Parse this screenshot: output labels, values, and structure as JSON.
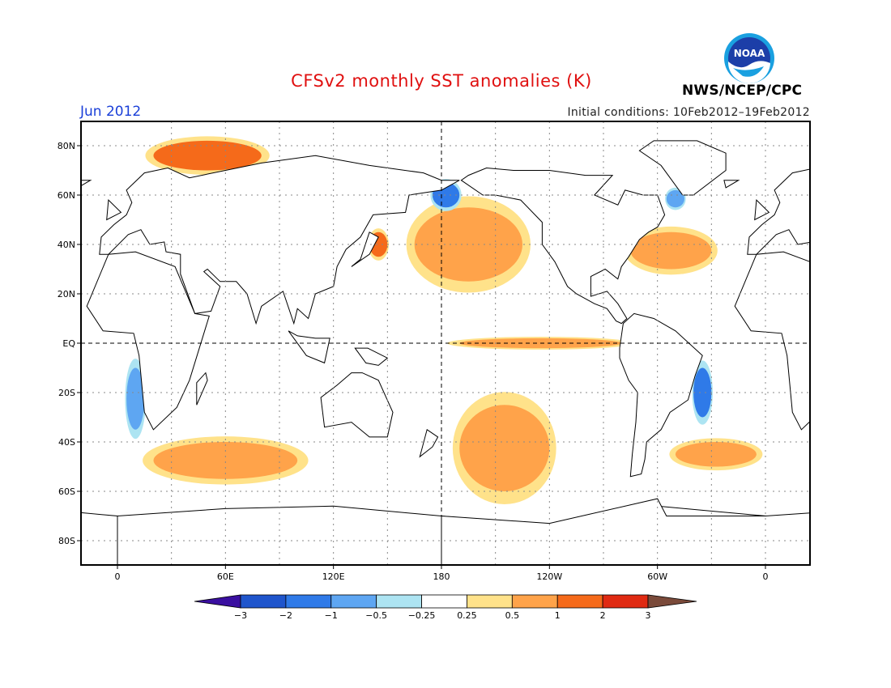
{
  "title": "CFSv2 monthly SST anomalies (K)",
  "month": "Jun 2012",
  "initial_conditions": "Initial conditions: 10Feb2012–19Feb2012",
  "agency": "NWS/NCEP/CPC",
  "logo_text": "NOAA",
  "colors": {
    "title": "#e01010",
    "month": "#1a3fd8"
  },
  "lat_labels": [
    "80N",
    "60N",
    "40N",
    "20N",
    "EQ",
    "20S",
    "40S",
    "60S",
    "80S"
  ],
  "lon_labels": [
    "0",
    "60E",
    "120E",
    "180",
    "120W",
    "60W",
    "0"
  ],
  "colorbar": {
    "tick_labels": [
      "−3",
      "−2",
      "−1",
      "−0.5",
      "−0.25",
      "0.25",
      "0.5",
      "1",
      "2",
      "3"
    ],
    "colors": [
      "#3a0fa0",
      "#1f55cc",
      "#2f7ae8",
      "#5ea6f2",
      "#ade4f2",
      "#ffffff",
      "#ffe28a",
      "#ffa34a",
      "#f56a1a",
      "#e02a12",
      "#b51010",
      "#7a4a3a"
    ]
  },
  "chart_data": {
    "type": "heatmap",
    "variable": "SST anomaly",
    "units": "K",
    "levels": [
      -3,
      -2,
      -1,
      -0.5,
      -0.25,
      0.25,
      0.5,
      1,
      2,
      3
    ],
    "anomaly_regions": [
      {
        "name": "North Pacific",
        "lat": [
          25,
          55
        ],
        "lon": [
          165,
          -135
        ],
        "anomaly": 1.0
      },
      {
        "name": "Equatorial Pacific",
        "lat": [
          -2,
          2
        ],
        "lon": [
          -170,
          -80
        ],
        "anomaly": 1.0
      },
      {
        "name": "North Atlantic (Gulf Stream)",
        "lat": [
          30,
          45
        ],
        "lon": [
          -75,
          -30
        ],
        "anomaly": 1.0
      },
      {
        "name": "Arctic Ocean / Barents Sea",
        "lat": [
          70,
          82
        ],
        "lon": [
          20,
          80
        ],
        "anomaly": 2.0
      },
      {
        "name": "Kuroshio Extension",
        "lat": [
          35,
          45
        ],
        "lon": [
          140,
          150
        ],
        "anomaly": 2.0
      },
      {
        "name": "Southern Indian Ocean",
        "lat": [
          -55,
          -40
        ],
        "lon": [
          20,
          100
        ],
        "anomaly": 1.0
      },
      {
        "name": "South Pacific",
        "lat": [
          -60,
          -25
        ],
        "lon": [
          -170,
          -120
        ],
        "anomaly": 1.0
      },
      {
        "name": "South Atlantic",
        "lat": [
          -50,
          -40
        ],
        "lon": [
          -50,
          -5
        ],
        "anomaly": 1.0
      },
      {
        "name": "Benguela Current",
        "lat": [
          -35,
          -10
        ],
        "lon": [
          5,
          15
        ],
        "anomaly": -0.5
      },
      {
        "name": "Brazil coast",
        "lat": [
          -30,
          -10
        ],
        "lon": [
          -40,
          -30
        ],
        "anomaly": -1.0
      },
      {
        "name": "Labrador Sea",
        "lat": [
          55,
          62
        ],
        "lon": [
          -55,
          -45
        ],
        "anomaly": -0.5
      },
      {
        "name": "Bering Sea",
        "lat": [
          55,
          65
        ],
        "lon": [
          175,
          -170
        ],
        "anomaly": -1.0
      }
    ]
  }
}
